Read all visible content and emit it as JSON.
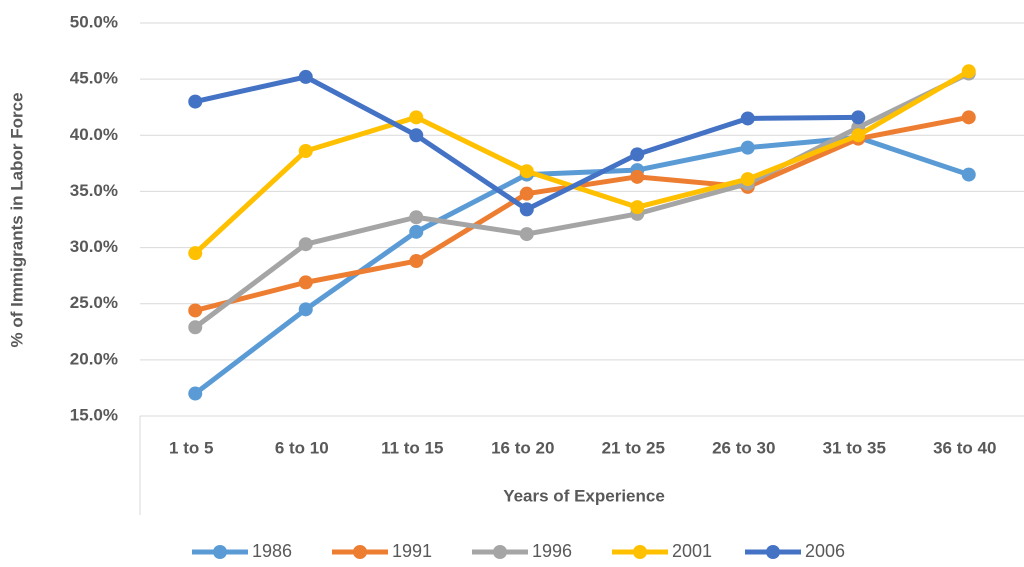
{
  "chart_data": {
    "type": "line",
    "x_label": "Years of Experience",
    "y_label": "% of Immigrants in Labor Force",
    "categories": [
      "1 to 5",
      "6 to 10",
      "11 to 15",
      "16 to 20",
      "21 to 25",
      "26 to 30",
      "31 to 35",
      "36 to 40"
    ],
    "ylim": [
      15,
      50
    ],
    "yticks": [
      {
        "value": 15,
        "label": "15.0%"
      },
      {
        "value": 20,
        "label": "20.0%"
      },
      {
        "value": 25,
        "label": "25.0%"
      },
      {
        "value": 30,
        "label": "30.0%"
      },
      {
        "value": 35,
        "label": "35.0%"
      },
      {
        "value": 40,
        "label": "40.0%"
      },
      {
        "value": 45,
        "label": "45.0%"
      },
      {
        "value": 50,
        "label": "50.0%"
      }
    ],
    "grid": true,
    "legend": "bottom",
    "series": [
      {
        "name": "1986",
        "color": "#5b9bd5",
        "values": [
          17.0,
          24.5,
          31.4,
          36.5,
          36.9,
          38.9,
          39.8,
          36.5
        ]
      },
      {
        "name": "1991",
        "color": "#ed7d31",
        "values": [
          24.4,
          26.9,
          28.8,
          34.8,
          36.3,
          35.4,
          39.7,
          41.6
        ]
      },
      {
        "name": "1996",
        "color": "#a5a5a5",
        "values": [
          22.9,
          30.3,
          32.7,
          31.2,
          33.0,
          35.7,
          40.7,
          45.5
        ]
      },
      {
        "name": "2001",
        "color": "#ffc000",
        "values": [
          29.5,
          38.6,
          41.6,
          36.8,
          33.6,
          36.1,
          40.0,
          45.7
        ]
      },
      {
        "name": "2006",
        "color": "#4472c4",
        "values": [
          43.0,
          45.2,
          40.0,
          33.4,
          38.3,
          41.5,
          41.6,
          null
        ]
      }
    ]
  }
}
